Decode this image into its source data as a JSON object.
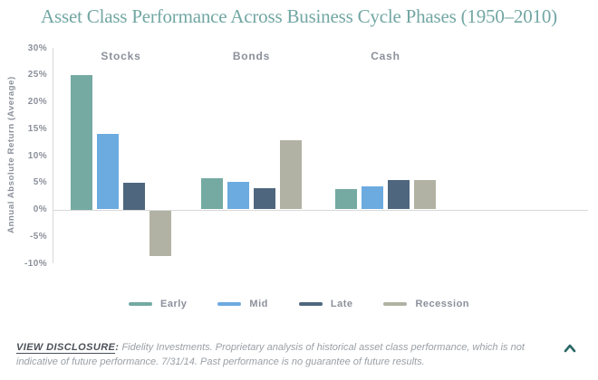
{
  "title": "Asset Class Performance Across Business Cycle Phases (1950–2010)",
  "colors": {
    "title_teal": "#72a7a3",
    "label_gray": "#8b909a",
    "axis_line": "#d9d9d9",
    "early": "#74aaa2",
    "mid": "#6cabe0",
    "late": "#4e677e",
    "recession": "#b2b2a4",
    "disclosure_dark": "#4b5058",
    "disclosure_gray": "#9aa0a6",
    "chevron_teal": "#2b6867"
  },
  "chart_data": {
    "type": "bar",
    "title": "Asset Class Performance Across Business Cycle Phases (1950–2010)",
    "xlabel": "",
    "ylabel": "Annual Absolute Return (Average)",
    "categories": [
      "Stocks",
      "Bonds",
      "Cash"
    ],
    "series": [
      {
        "name": "Early",
        "color": "#74aaa2",
        "values": [
          25.0,
          5.8,
          3.7
        ]
      },
      {
        "name": "Mid",
        "color": "#6cabe0",
        "values": [
          14.0,
          5.2,
          4.3
        ]
      },
      {
        "name": "Late",
        "color": "#4e677e",
        "values": [
          5.0,
          3.9,
          5.5
        ]
      },
      {
        "name": "Recession",
        "color": "#b2b2a4",
        "values": [
          -8.5,
          12.9,
          5.5
        ]
      }
    ],
    "ylim": [
      -10,
      30
    ],
    "ytick_step": 5,
    "ytick_labels": [
      "30%",
      "25%",
      "20%",
      "15%",
      "10%",
      "5%",
      "0%",
      "-5%",
      "-10%"
    ],
    "grid": false,
    "legend_position": "bottom"
  },
  "disclosure": {
    "label": "VIEW DISCLOSURE",
    "colon": ":",
    "text": "Fidelity Investments. Proprietary analysis of historical asset class performance, which is not indicative of future performance. 7/31/14. Past performance is no guarantee of future results."
  },
  "icons": {
    "collapse": "chevron-up"
  }
}
